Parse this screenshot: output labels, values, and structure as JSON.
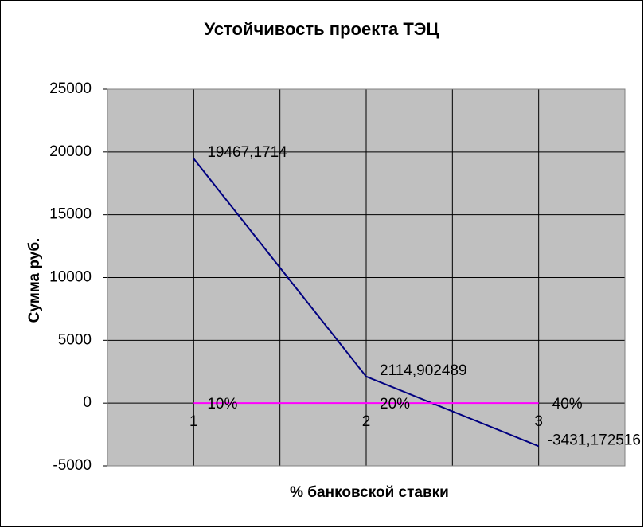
{
  "chart_data": {
    "type": "line",
    "title": "Устойчивость проекта ТЭЦ",
    "x_label": "% банковской ставки",
    "y_label": "Сумма руб.",
    "x": [
      1,
      2,
      3
    ],
    "xlim": [
      0.5,
      3.5
    ],
    "xticks": [
      1,
      2,
      3
    ],
    "ylim": [
      -5000,
      25000
    ],
    "yticks": [
      -5000,
      0,
      5000,
      10000,
      15000,
      20000,
      25000
    ],
    "grid": true,
    "plot_background": "#c0c0c0",
    "series": [
      {
        "color": "#000080",
        "values": [
          19467.1714,
          2114.902489,
          -3431.172516
        ],
        "value_labels": [
          "19467,1714",
          "2114,902489",
          "-3431,172516"
        ]
      },
      {
        "color": "#ff00ff",
        "values": [
          0,
          0,
          0
        ],
        "value_labels": [
          "10%",
          "20%",
          "40%"
        ]
      }
    ]
  }
}
